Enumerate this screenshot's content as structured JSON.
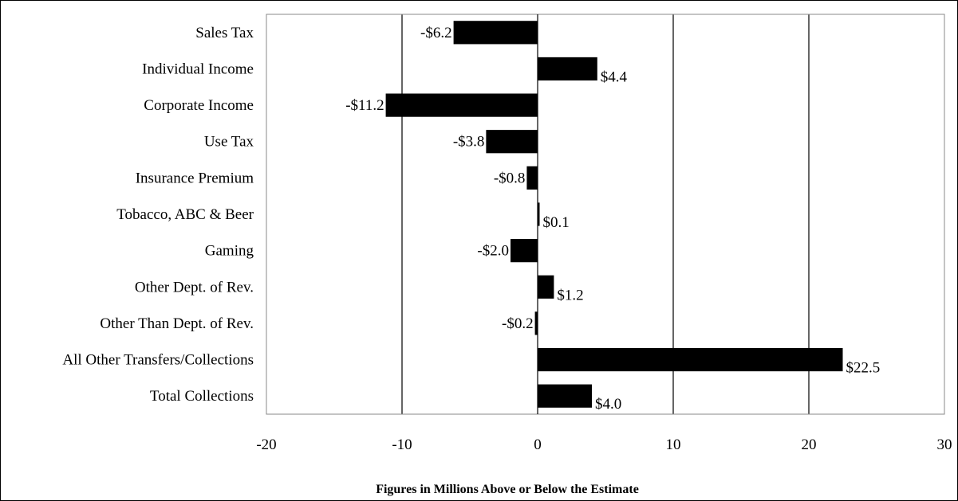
{
  "chart_data": {
    "type": "bar",
    "orientation": "horizontal",
    "categories": [
      "Sales Tax",
      "Individual Income",
      "Corporate Income",
      "Use Tax",
      "Insurance Premium",
      "Tobacco, ABC & Beer",
      "Gaming",
      "Other Dept. of Rev.",
      "Other Than Dept. of Rev.",
      "All Other Transfers/Collections",
      "Total Collections"
    ],
    "values": [
      -6.2,
      4.4,
      -11.2,
      -3.8,
      -0.8,
      0.1,
      -2.0,
      1.2,
      -0.2,
      22.5,
      4.0
    ],
    "data_labels": [
      "-$6.2",
      "$4.4",
      "-$11.2",
      "-$3.8",
      "-$0.8",
      "$0.1",
      "-$2.0",
      "$1.2",
      "-$0.2",
      "$22.5",
      "$4.0"
    ],
    "title": "",
    "xlabel": "Figures in Millions Above or Below the Estimate",
    "ylabel": "",
    "xlim": [
      -20,
      30
    ],
    "xticks": [
      -20,
      -10,
      0,
      10,
      20,
      30
    ],
    "xtick_labels": [
      "-20",
      "-10",
      "0",
      "10",
      "20",
      "30"
    ],
    "grid": "vertical",
    "legend": "none",
    "bar_color": "#000000"
  }
}
